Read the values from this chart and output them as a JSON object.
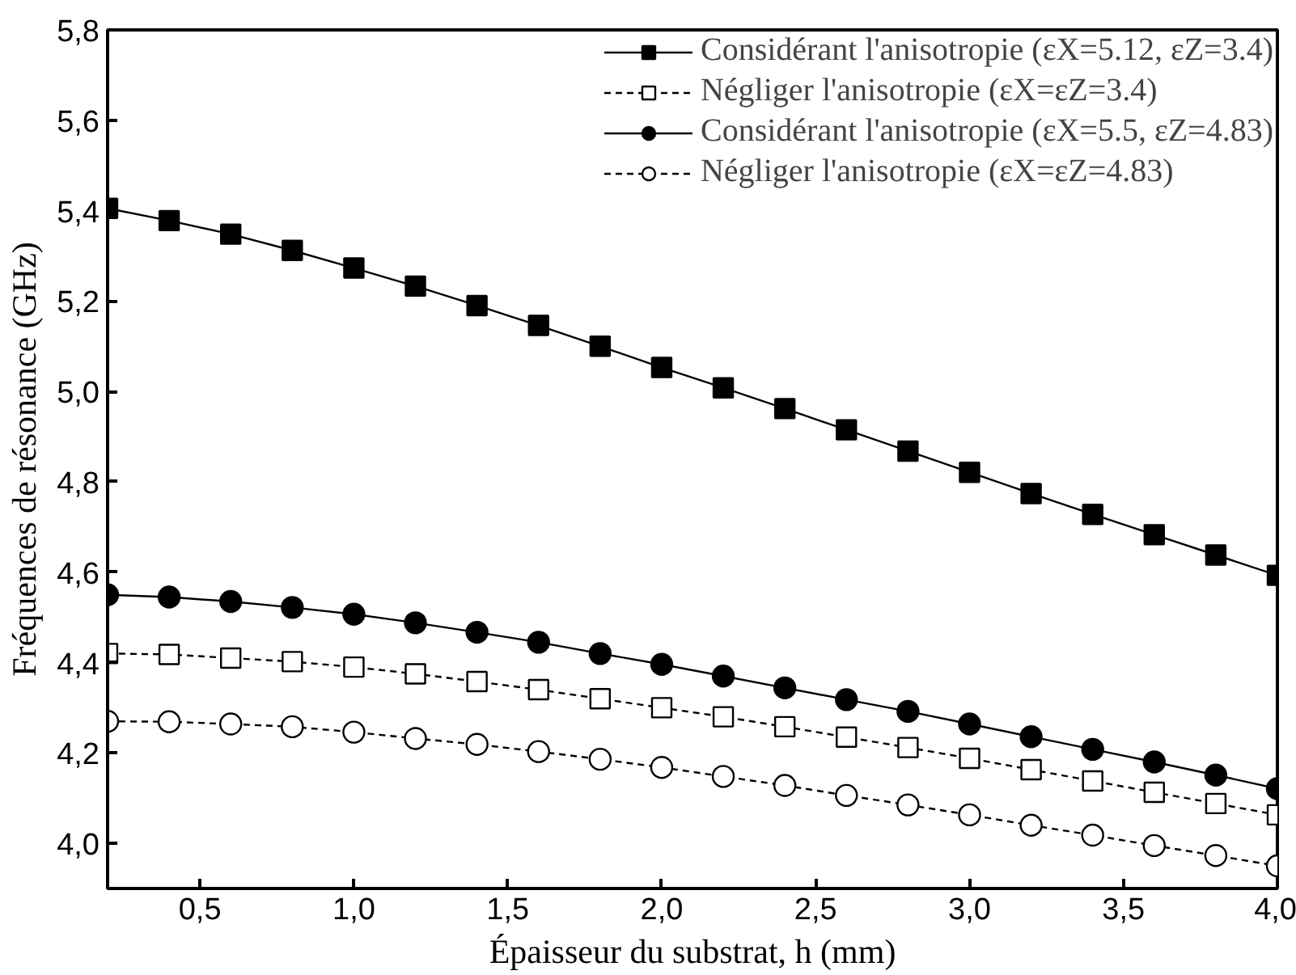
{
  "chart_data": {
    "type": "line",
    "xlabel": "Épaisseur du substrat, h (mm)",
    "ylabel": "Fréquences de résonance (GHz)",
    "x": [
      0.2,
      0.4,
      0.6,
      0.8,
      1.0,
      1.2,
      1.4,
      1.6,
      1.8,
      2.0,
      2.2,
      2.4,
      2.6,
      2.8,
      3.0,
      3.2,
      3.4,
      3.6,
      3.8,
      4.0
    ],
    "series": [
      {
        "name": "Considérant l'anisotropie (εX=5.12, εZ=3.4)",
        "color": "#000000",
        "marker": "square",
        "line_style": "solid",
        "values": [
          5.405,
          5.378,
          5.348,
          5.312,
          5.273,
          5.233,
          5.19,
          5.146,
          5.1,
          5.053,
          5.008,
          4.962,
          4.915,
          4.868,
          4.821,
          4.774,
          4.728,
          4.683,
          4.638,
          4.593
        ]
      },
      {
        "name": "Négliger l'anisotropie (εX=εZ=3.4)",
        "color": "#000000",
        "marker": "square-open",
        "line_style": "dashed",
        "values": [
          4.42,
          4.418,
          4.41,
          4.402,
          4.39,
          4.375,
          4.358,
          4.34,
          4.32,
          4.3,
          4.28,
          4.258,
          4.235,
          4.212,
          4.188,
          4.163,
          4.138,
          4.113,
          4.088,
          4.063
        ]
      },
      {
        "name": "Considérant l'anisotropie (εX=5.5, εZ=4.83)",
        "color": "#000000",
        "marker": "circle",
        "line_style": "solid",
        "values": [
          4.55,
          4.545,
          4.535,
          4.522,
          4.507,
          4.488,
          4.467,
          4.445,
          4.42,
          4.396,
          4.37,
          4.344,
          4.318,
          4.292,
          4.264,
          4.236,
          4.208,
          4.18,
          4.151,
          4.121
        ]
      },
      {
        "name": "Négliger l'anisotropie (εX=εZ=4.83)",
        "color": "#000000",
        "marker": "circle-open",
        "line_style": "dashed",
        "values": [
          4.27,
          4.269,
          4.264,
          4.258,
          4.246,
          4.232,
          4.219,
          4.203,
          4.186,
          4.168,
          4.148,
          4.128,
          4.106,
          4.085,
          4.063,
          4.04,
          4.018,
          3.995,
          3.973,
          3.95
        ]
      }
    ],
    "xlim": [
      0.2,
      4.0
    ],
    "ylim": [
      3.9,
      5.8
    ],
    "xticks": [
      {
        "value": 0.5,
        "label": "0,5"
      },
      {
        "value": 1.0,
        "label": "1,0"
      },
      {
        "value": 1.5,
        "label": "1,5"
      },
      {
        "value": 2.0,
        "label": "2,0"
      },
      {
        "value": 2.5,
        "label": "2,5"
      },
      {
        "value": 3.0,
        "label": "3,0"
      },
      {
        "value": 3.5,
        "label": "3,5"
      },
      {
        "value": 4.0,
        "label": "4,0"
      }
    ],
    "yticks": [
      {
        "value": 4.0,
        "label": "4,0"
      },
      {
        "value": 4.2,
        "label": "4,2"
      },
      {
        "value": 4.4,
        "label": "4,4"
      },
      {
        "value": 4.6,
        "label": "4,6"
      },
      {
        "value": 4.8,
        "label": "4,8"
      },
      {
        "value": 5.0,
        "label": "5,0"
      },
      {
        "value": 5.2,
        "label": "5,2"
      },
      {
        "value": 5.4,
        "label": "5,4"
      },
      {
        "value": 5.6,
        "label": "5,6"
      },
      {
        "value": 5.8,
        "label": "5,8"
      }
    ],
    "grid": false,
    "legend": "top right"
  }
}
